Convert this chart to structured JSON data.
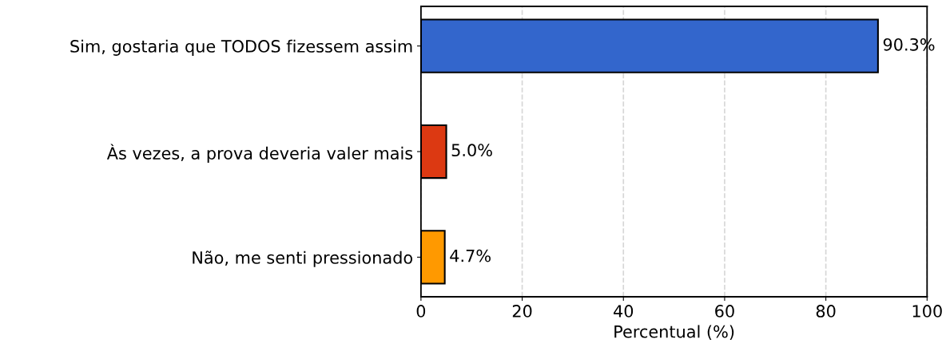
{
  "chart_data": {
    "type": "bar",
    "orientation": "horizontal",
    "xlabel": "Percentual (%)",
    "categories": [
      "Sim, gostaria que TODOS fizessem assim",
      "Às vezes, a prova deveria valer mais",
      "Não, me senti pressionado"
    ],
    "values": [
      90.3,
      5.0,
      4.7
    ],
    "colors": [
      "#3366cc",
      "#dc3912",
      "#ff9900"
    ],
    "value_labels": [
      "90.3%",
      "5.0%",
      "4.7%"
    ],
    "xlim": [
      0,
      100
    ],
    "xticks": [
      0,
      20,
      40,
      60,
      80,
      100
    ],
    "grid": "x"
  }
}
